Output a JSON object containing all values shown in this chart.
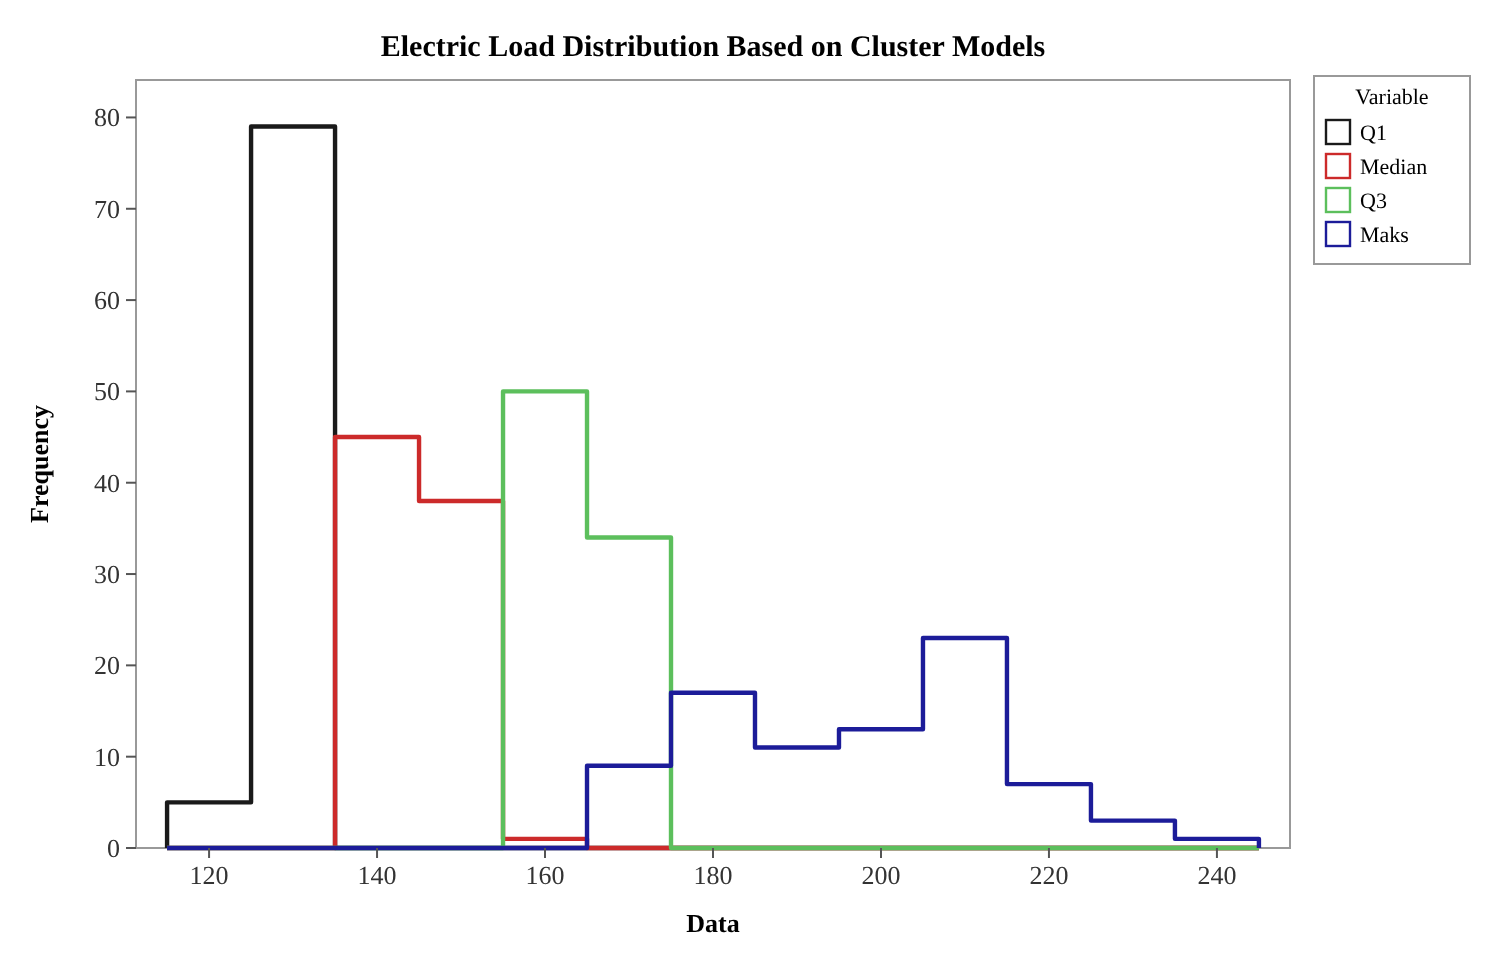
{
  "chart_data": {
    "type": "histogram",
    "title": "Electric Load Distribution Based on Cluster Models",
    "xlabel": "Data",
    "ylabel": "Frequency",
    "legend_title": "Variable",
    "legend": "top right",
    "grid": false,
    "bins": [
      115,
      125,
      135,
      145,
      155,
      165,
      175,
      185,
      195,
      205,
      215,
      225,
      235,
      245
    ],
    "xlim": [
      111.3,
      248.7
    ],
    "xticks": [
      120,
      140,
      160,
      180,
      200,
      220,
      240
    ],
    "ylim": [
      0,
      84.1
    ],
    "yticks": [
      0,
      10,
      20,
      30,
      40,
      50,
      60,
      70,
      80
    ],
    "series": [
      {
        "name": "Q1",
        "color": "#1a1a1a",
        "values": [
          5,
          79,
          0,
          0,
          0,
          0,
          0,
          0,
          0,
          0,
          0,
          0,
          0
        ]
      },
      {
        "name": "Median",
        "color": "#cc2a2a",
        "values": [
          0,
          0,
          45,
          38,
          1,
          0,
          0,
          0,
          0,
          0,
          0,
          0,
          0
        ]
      },
      {
        "name": "Q3",
        "color": "#5cbf5c",
        "values": [
          0,
          0,
          0,
          0,
          50,
          34,
          0,
          0,
          0,
          0,
          0,
          0,
          0
        ]
      },
      {
        "name": "Maks",
        "color": "#1c1c99",
        "values": [
          0,
          0,
          0,
          0,
          0,
          9,
          17,
          11,
          13,
          23,
          7,
          3,
          1
        ]
      }
    ]
  }
}
